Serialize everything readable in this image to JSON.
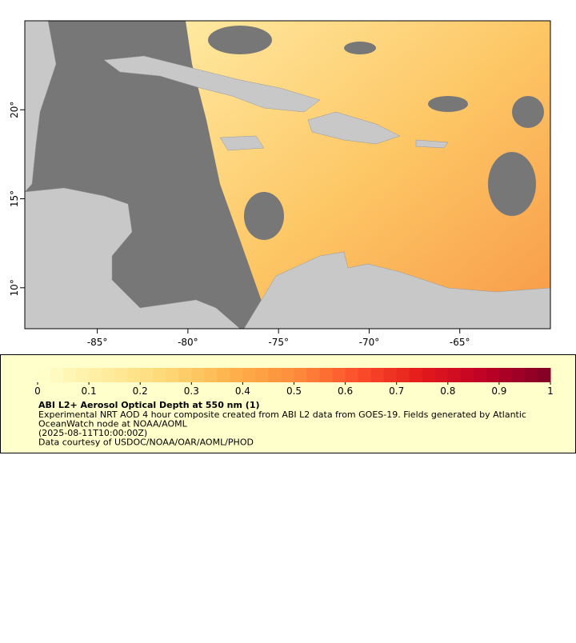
{
  "map": {
    "xticks": [
      {
        "value": -85,
        "label": "-85°"
      },
      {
        "value": -80,
        "label": "-80°"
      },
      {
        "value": -75,
        "label": "-75°"
      },
      {
        "value": -70,
        "label": "-70°"
      },
      {
        "value": -65,
        "label": "-65°"
      }
    ],
    "yticks": [
      {
        "value": 10,
        "label": "10°"
      },
      {
        "value": 15,
        "label": "15°"
      },
      {
        "value": 20,
        "label": "20°"
      }
    ],
    "xlim": [
      -89,
      -60
    ],
    "ylim": [
      7.7,
      25
    ]
  },
  "colorbar": {
    "range": [
      0,
      1
    ],
    "ticks": [
      0,
      0.1,
      0.2,
      0.3,
      0.4,
      0.5,
      0.6,
      0.7,
      0.8,
      0.9,
      1
    ],
    "colors": [
      "#ffffcc",
      "#ffeda0",
      "#fed976",
      "#feb24c",
      "#fd8d3c",
      "#fc4e2a",
      "#e31a1c",
      "#bd0026",
      "#800026"
    ]
  },
  "legend": {
    "title": "ABI L2+ Aerosol Optical Depth at 550 nm (1)",
    "lines": [
      "Experimental NRT AOD 4 hour composite created from ABI L2 data from GOES-19. Fields generated by Atlantic",
      "OceanWatch node at NOAA/AOML",
      "(2025-08-11T10:00:00Z)",
      "Data courtesy of USDOC/NOAA/OAR/AOML/PHOD"
    ]
  }
}
